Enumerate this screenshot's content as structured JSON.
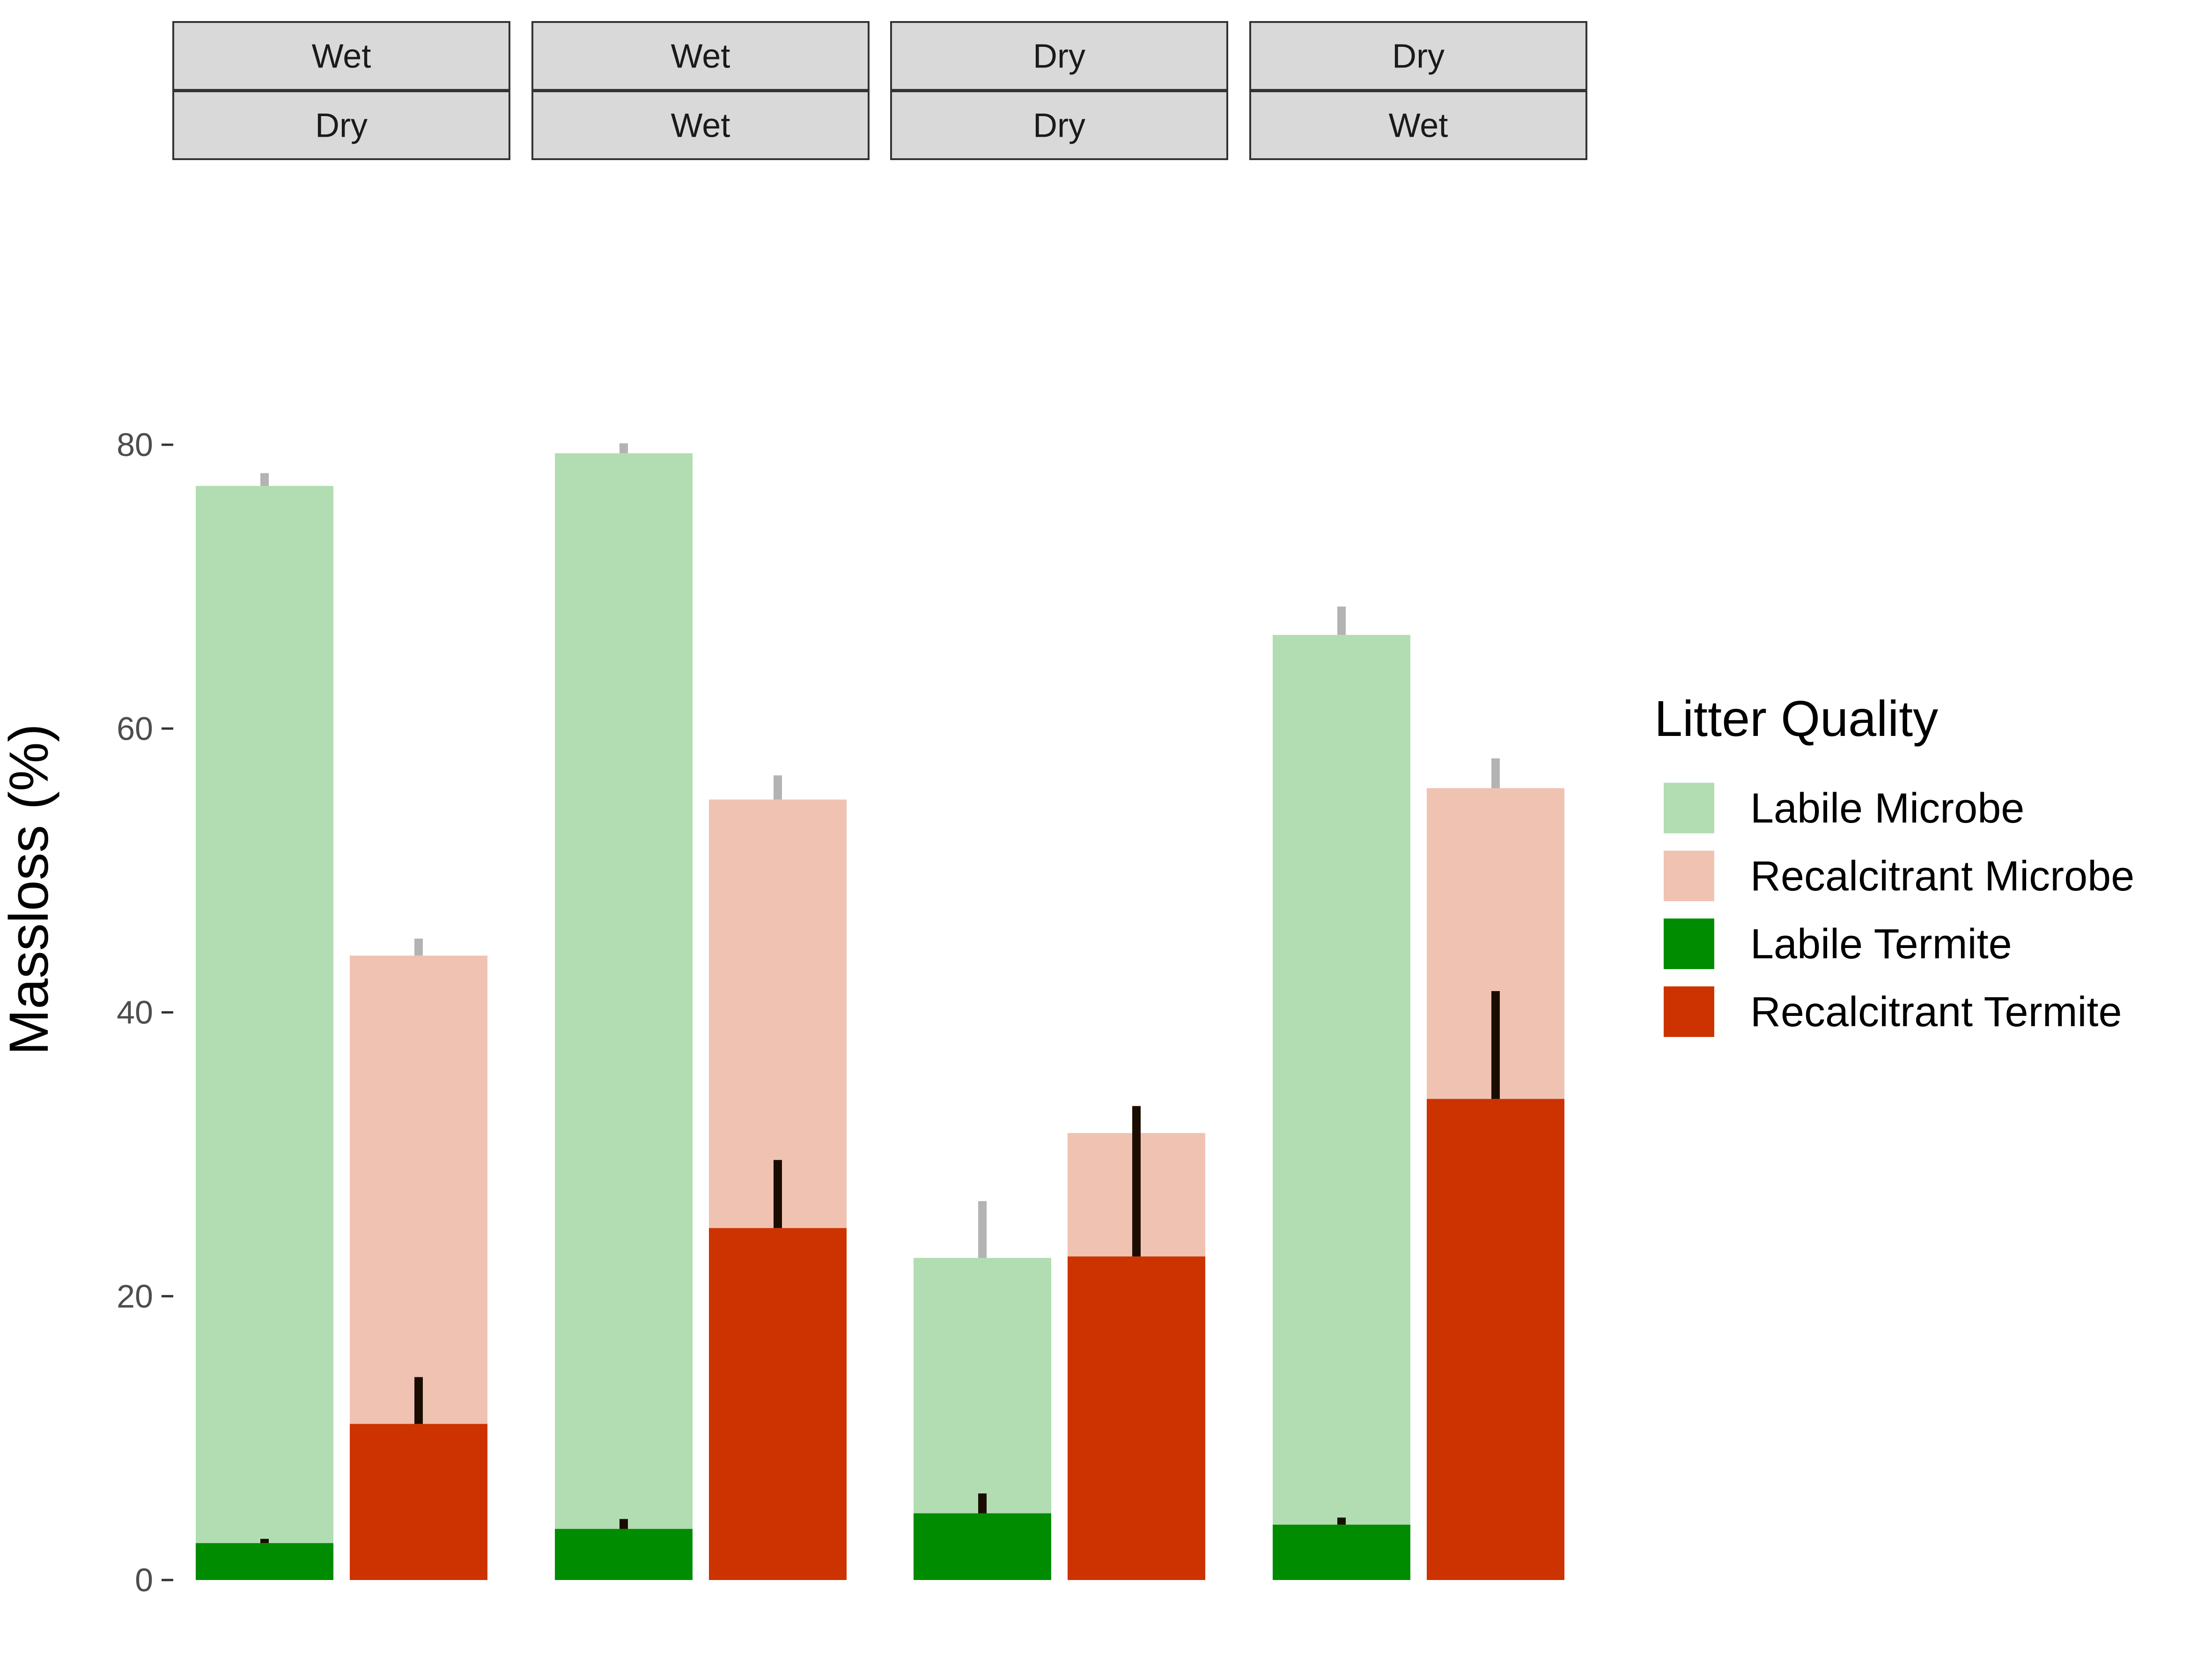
{
  "chart_data": {
    "type": "bar",
    "ylabel": "Massloss (%)",
    "ylim": [
      0,
      80
    ],
    "yticks": [
      0,
      20,
      40,
      60,
      80
    ],
    "grid": false,
    "legend": {
      "title": "Litter Quality",
      "position": "right",
      "entries": [
        "Labile Microbe",
        "Recalcitrant Microbe",
        "Labile Termite",
        "Recalcitrant Termite"
      ]
    },
    "colors": {
      "Labile Microbe": "#b2ddb2",
      "Recalcitrant Microbe": "#f0c2b2",
      "Labile Termite": "#008c00",
      "Recalcitrant Termite": "#cc3300",
      "microbe_error": "#b3b3b3",
      "termite_error": "#1a0d00",
      "strip_fill": "#d9d9d9",
      "strip_border": "#333333"
    },
    "panels": [
      {
        "strip_top": "Wet",
        "strip_bottom": "Dry",
        "bars": [
          {
            "quality": "Labile",
            "microbe": 77.1,
            "microbe_err": [
              77.1,
              78.0
            ],
            "termite": 2.6,
            "termite_err": [
              2.6,
              2.9
            ]
          },
          {
            "quality": "Recalcitrant",
            "microbe": 44.0,
            "microbe_err": [
              44.0,
              45.2
            ],
            "termite": 11.0,
            "termite_err": [
              11.0,
              14.3
            ]
          }
        ]
      },
      {
        "strip_top": "Wet",
        "strip_bottom": "Wet",
        "bars": [
          {
            "quality": "Labile",
            "microbe": 79.4,
            "microbe_err": [
              79.4,
              80.1
            ],
            "termite": 3.6,
            "termite_err": [
              3.6,
              4.3
            ]
          },
          {
            "quality": "Recalcitrant",
            "microbe": 55.0,
            "microbe_err": [
              55.0,
              56.7
            ],
            "termite": 24.8,
            "termite_err": [
              24.8,
              29.6
            ]
          }
        ]
      },
      {
        "strip_top": "Dry",
        "strip_bottom": "Dry",
        "bars": [
          {
            "quality": "Labile",
            "microbe": 22.7,
            "microbe_err": [
              22.7,
              26.7
            ],
            "termite": 4.7,
            "termite_err": [
              4.7,
              6.1
            ]
          },
          {
            "quality": "Recalcitrant",
            "microbe": 31.5,
            "microbe_err": [
              22.8,
              33.4
            ],
            "termite": 22.8,
            "termite_err": [
              22.8,
              33.4
            ]
          }
        ]
      },
      {
        "strip_top": "Dry",
        "strip_bottom": "Wet",
        "bars": [
          {
            "quality": "Labile",
            "microbe": 66.6,
            "microbe_err": [
              66.6,
              68.6
            ],
            "termite": 3.9,
            "termite_err": [
              3.9,
              4.4
            ]
          },
          {
            "quality": "Recalcitrant",
            "microbe": 55.8,
            "microbe_err": [
              55.8,
              57.9
            ],
            "termite": 33.9,
            "termite_err": [
              33.9,
              41.5
            ]
          }
        ]
      }
    ]
  }
}
